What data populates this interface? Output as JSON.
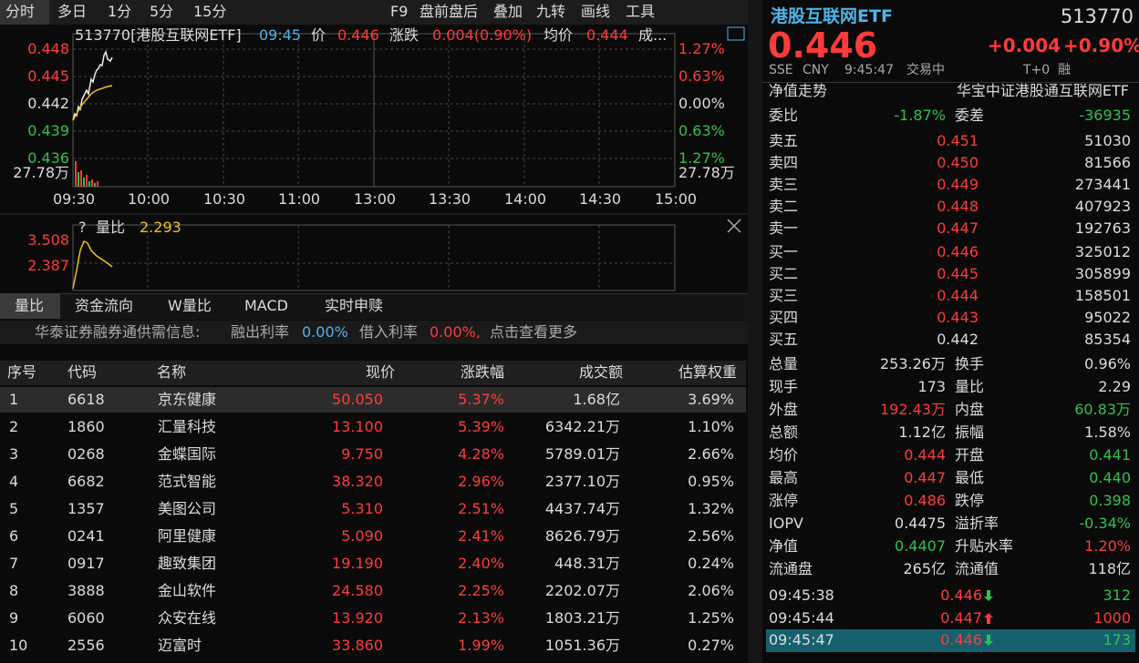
{
  "toolbar": {
    "tabs": [
      "分时",
      "多日",
      "1分",
      "5分",
      "15分"
    ],
    "tools": [
      "F9",
      "盘前盘后",
      "叠加",
      "九转",
      "画线",
      "工具"
    ]
  },
  "chart": {
    "code_name": "513770[港股互联网ETF]",
    "time": "09:45",
    "price_label": "价",
    "price": "0.446",
    "change_label": "涨跌",
    "change": "0.004(0.90%)",
    "avg_label": "均价",
    "avg": "0.444",
    "more": "成...",
    "left_labels": [
      "0.448",
      "0.445",
      "0.442",
      "0.439",
      "0.436"
    ],
    "right_labels": [
      "1.27%",
      "0.63%",
      "0.00%",
      "0.63%",
      "1.27%"
    ],
    "volume_left": "27.78万",
    "volume_right": "27.78万",
    "x_labels": [
      "09:30",
      "10:00",
      "10:30",
      "11:00",
      "13:00",
      "13:30",
      "14:00",
      "14:30",
      "15:00"
    ]
  },
  "sub_chart": {
    "help": "?",
    "indicator": "量比",
    "value": "2.293",
    "labels": [
      "3.508",
      "2.387"
    ]
  },
  "tabs": [
    "量比",
    "资金流向",
    "W量比",
    "MACD",
    "实时申赎"
  ],
  "notice": {
    "source": "华泰证券融券通供需信息:",
    "lend_label": "融出利率",
    "lend": "0.00%",
    "borrow_label": "借入利率",
    "borrow": "0.00%,",
    "more": "点击查看更多"
  },
  "table": {
    "headers": [
      "序号",
      "代码",
      "名称",
      "现价",
      "涨跌幅",
      "成交额",
      "估算权重"
    ],
    "rows": [
      [
        "1",
        "6618",
        "京东健康",
        "50.050",
        "5.37%",
        "1.68亿",
        "3.69%"
      ],
      [
        "2",
        "1860",
        "汇量科技",
        "13.100",
        "5.39%",
        "6342.21万",
        "1.10%"
      ],
      [
        "3",
        "0268",
        "金蝶国际",
        "9.750",
        "4.28%",
        "5789.01万",
        "2.66%"
      ],
      [
        "4",
        "6682",
        "范式智能",
        "38.320",
        "2.96%",
        "2377.10万",
        "0.95%"
      ],
      [
        "5",
        "1357",
        "美图公司",
        "5.310",
        "2.51%",
        "4437.74万",
        "1.32%"
      ],
      [
        "6",
        "0241",
        "阿里健康",
        "5.090",
        "2.41%",
        "8626.79万",
        "2.56%"
      ],
      [
        "7",
        "0917",
        "趣致集团",
        "19.190",
        "2.40%",
        "448.31万",
        "0.24%"
      ],
      [
        "8",
        "3888",
        "金山软件",
        "24.580",
        "2.25%",
        "2202.07万",
        "2.06%"
      ],
      [
        "9",
        "6060",
        "众安在线",
        "13.920",
        "2.13%",
        "1803.21万",
        "1.25%"
      ],
      [
        "10",
        "2556",
        "迈富时",
        "33.860",
        "1.99%",
        "1051.36万",
        "0.27%"
      ]
    ]
  },
  "quote": {
    "name": "港股互联网ETF",
    "code": "513770",
    "price": "0.446",
    "change": "+0.004",
    "change_pct": "+0.90%",
    "market": "SSE",
    "currency": "CNY",
    "time": "9:45:47",
    "status": "交易中",
    "t0": "T+0",
    "margin": "融",
    "nav_trend": "净值走势",
    "fund_name": "华宝中证港股通互联网ETF",
    "ratio_label": "委比",
    "ratio": "-1.87%",
    "diff_label": "委差",
    "diff": "-36935",
    "sells": [
      [
        "卖五",
        "0.451",
        "51030"
      ],
      [
        "卖四",
        "0.450",
        "81566"
      ],
      [
        "卖三",
        "0.449",
        "273441"
      ],
      [
        "卖二",
        "0.448",
        "407923"
      ],
      [
        "卖一",
        "0.447",
        "192763"
      ]
    ],
    "buys": [
      [
        "买一",
        "0.446",
        "325012"
      ],
      [
        "买二",
        "0.445",
        "305899"
      ],
      [
        "买三",
        "0.444",
        "158501"
      ],
      [
        "买四",
        "0.443",
        "95022"
      ],
      [
        "买五",
        "0.442",
        "85354"
      ]
    ],
    "stats": [
      [
        "总量",
        "253.26万",
        "换手",
        "0.96%"
      ],
      [
        "现手",
        "173",
        "量比",
        "2.29"
      ],
      [
        "外盘",
        "192.43万",
        "内盘",
        "60.83万"
      ],
      [
        "总额",
        "1.12亿",
        "振幅",
        "1.58%"
      ],
      [
        "均价",
        "0.444",
        "开盘",
        "0.441"
      ],
      [
        "最高",
        "0.447",
        "最低",
        "0.440"
      ],
      [
        "涨停",
        "0.486",
        "跌停",
        "0.398"
      ],
      [
        "IOPV",
        "0.4475",
        "溢折率",
        "-0.34%"
      ],
      [
        "净值",
        "0.4407",
        "升贴水率",
        "1.20%"
      ],
      [
        "流通盘",
        "265亿",
        "流通值",
        "118亿"
      ]
    ],
    "trades": [
      [
        "09:45:38",
        "0.446",
        "312"
      ],
      [
        "09:45:44",
        "0.447",
        "1000"
      ],
      [
        "09:45:47",
        "0.446",
        "173"
      ]
    ]
  }
}
